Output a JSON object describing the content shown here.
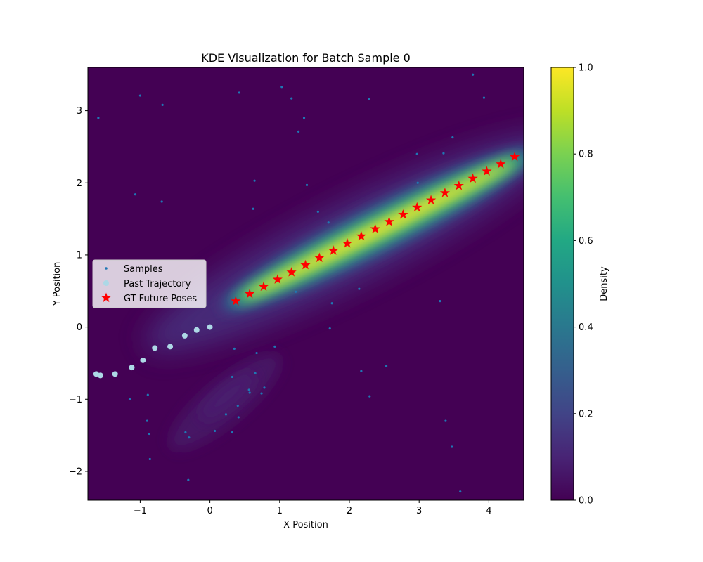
{
  "chart_data": {
    "type": "scatter",
    "title": "KDE Visualization for Batch Sample 0",
    "xlabel": "X Position",
    "ylabel": "Y Position",
    "xlim": [
      -1.75,
      4.5
    ],
    "ylim": [
      -2.4,
      3.6
    ],
    "xticks": [
      -1,
      0,
      1,
      2,
      3,
      4
    ],
    "xtick_labels": [
      "−1",
      "0",
      "1",
      "2",
      "3",
      "4"
    ],
    "yticks": [
      -2,
      -1,
      0,
      1,
      2,
      3
    ],
    "ytick_labels": [
      "−2",
      "−1",
      "0",
      "1",
      "2",
      "3"
    ],
    "grid": false,
    "legend_position": "center-left",
    "background": {
      "type": "kde-density",
      "colormap": "viridis",
      "colorbar_label": "Density",
      "colorbar_range": [
        0.0,
        1.0
      ],
      "colorbar_ticks": [
        0.0,
        0.2,
        0.4,
        0.6,
        0.8,
        1.0
      ],
      "colorbar_tick_labels": [
        "0.0",
        "0.2",
        "0.4",
        "0.6",
        "0.8",
        "1.0"
      ]
    },
    "series": [
      {
        "name": "Samples",
        "marker": "dot",
        "color": "#1f77b4",
        "x": [
          -1.6,
          -1.0,
          -0.68,
          0.42,
          1.03,
          1.17,
          1.35,
          2.28,
          3.77,
          3.93,
          1.27,
          -1.07,
          -0.69,
          0.64,
          1.39,
          0.62,
          1.55,
          1.7,
          2.97,
          3.35,
          3.48,
          2.98,
          2.14,
          1.23,
          1.75,
          1.72,
          0.35,
          0.93,
          0.67,
          2.17,
          2.53,
          0.32,
          0.56,
          0.57,
          0.65,
          0.74,
          0.78,
          -1.15,
          -0.89,
          0.4,
          0.41,
          0.23,
          -0.9,
          -0.87,
          0.07,
          0.32,
          -0.35,
          -0.3,
          -0.86,
          -0.31,
          3.38,
          3.47,
          3.59,
          2.29,
          3.3
        ],
        "y": [
          2.9,
          3.21,
          3.08,
          3.25,
          3.33,
          3.17,
          2.9,
          3.16,
          3.5,
          3.18,
          2.71,
          1.84,
          1.74,
          2.03,
          1.97,
          1.64,
          1.6,
          1.45,
          2.4,
          2.41,
          2.63,
          2.0,
          0.53,
          0.49,
          0.33,
          -0.02,
          -0.3,
          -0.27,
          -0.36,
          -0.61,
          -0.54,
          -0.69,
          -0.87,
          -0.91,
          -0.64,
          -0.92,
          -0.84,
          -1.0,
          -0.94,
          -1.09,
          -1.25,
          -1.21,
          -1.3,
          -1.48,
          -1.44,
          -1.46,
          -1.46,
          -1.53,
          -1.83,
          -2.12,
          -1.3,
          -1.66,
          -2.28,
          -0.96,
          0.36
        ]
      },
      {
        "name": "Past Trajectory",
        "marker": "circle",
        "color": "#add8e6",
        "x": [
          -1.63,
          -1.57,
          -1.36,
          -1.12,
          -0.96,
          -0.79,
          -0.57,
          -0.36,
          -0.19,
          0.0
        ],
        "y": [
          -0.65,
          -0.67,
          -0.65,
          -0.56,
          -0.46,
          -0.29,
          -0.27,
          -0.12,
          -0.04,
          0.0
        ]
      },
      {
        "name": "GT Future Poses",
        "marker": "star",
        "color": "#ff0000",
        "x": [
          0.37,
          0.57,
          0.77,
          0.97,
          1.17,
          1.37,
          1.57,
          1.77,
          1.97,
          2.17,
          2.37,
          2.57,
          2.77,
          2.97,
          3.17,
          3.37,
          3.57,
          3.77,
          3.97,
          4.17,
          4.37
        ],
        "y": [
          0.36,
          0.46,
          0.56,
          0.66,
          0.76,
          0.86,
          0.96,
          1.06,
          1.16,
          1.26,
          1.36,
          1.46,
          1.56,
          1.66,
          1.76,
          1.86,
          1.96,
          2.06,
          2.16,
          2.26,
          2.36
        ]
      }
    ]
  }
}
